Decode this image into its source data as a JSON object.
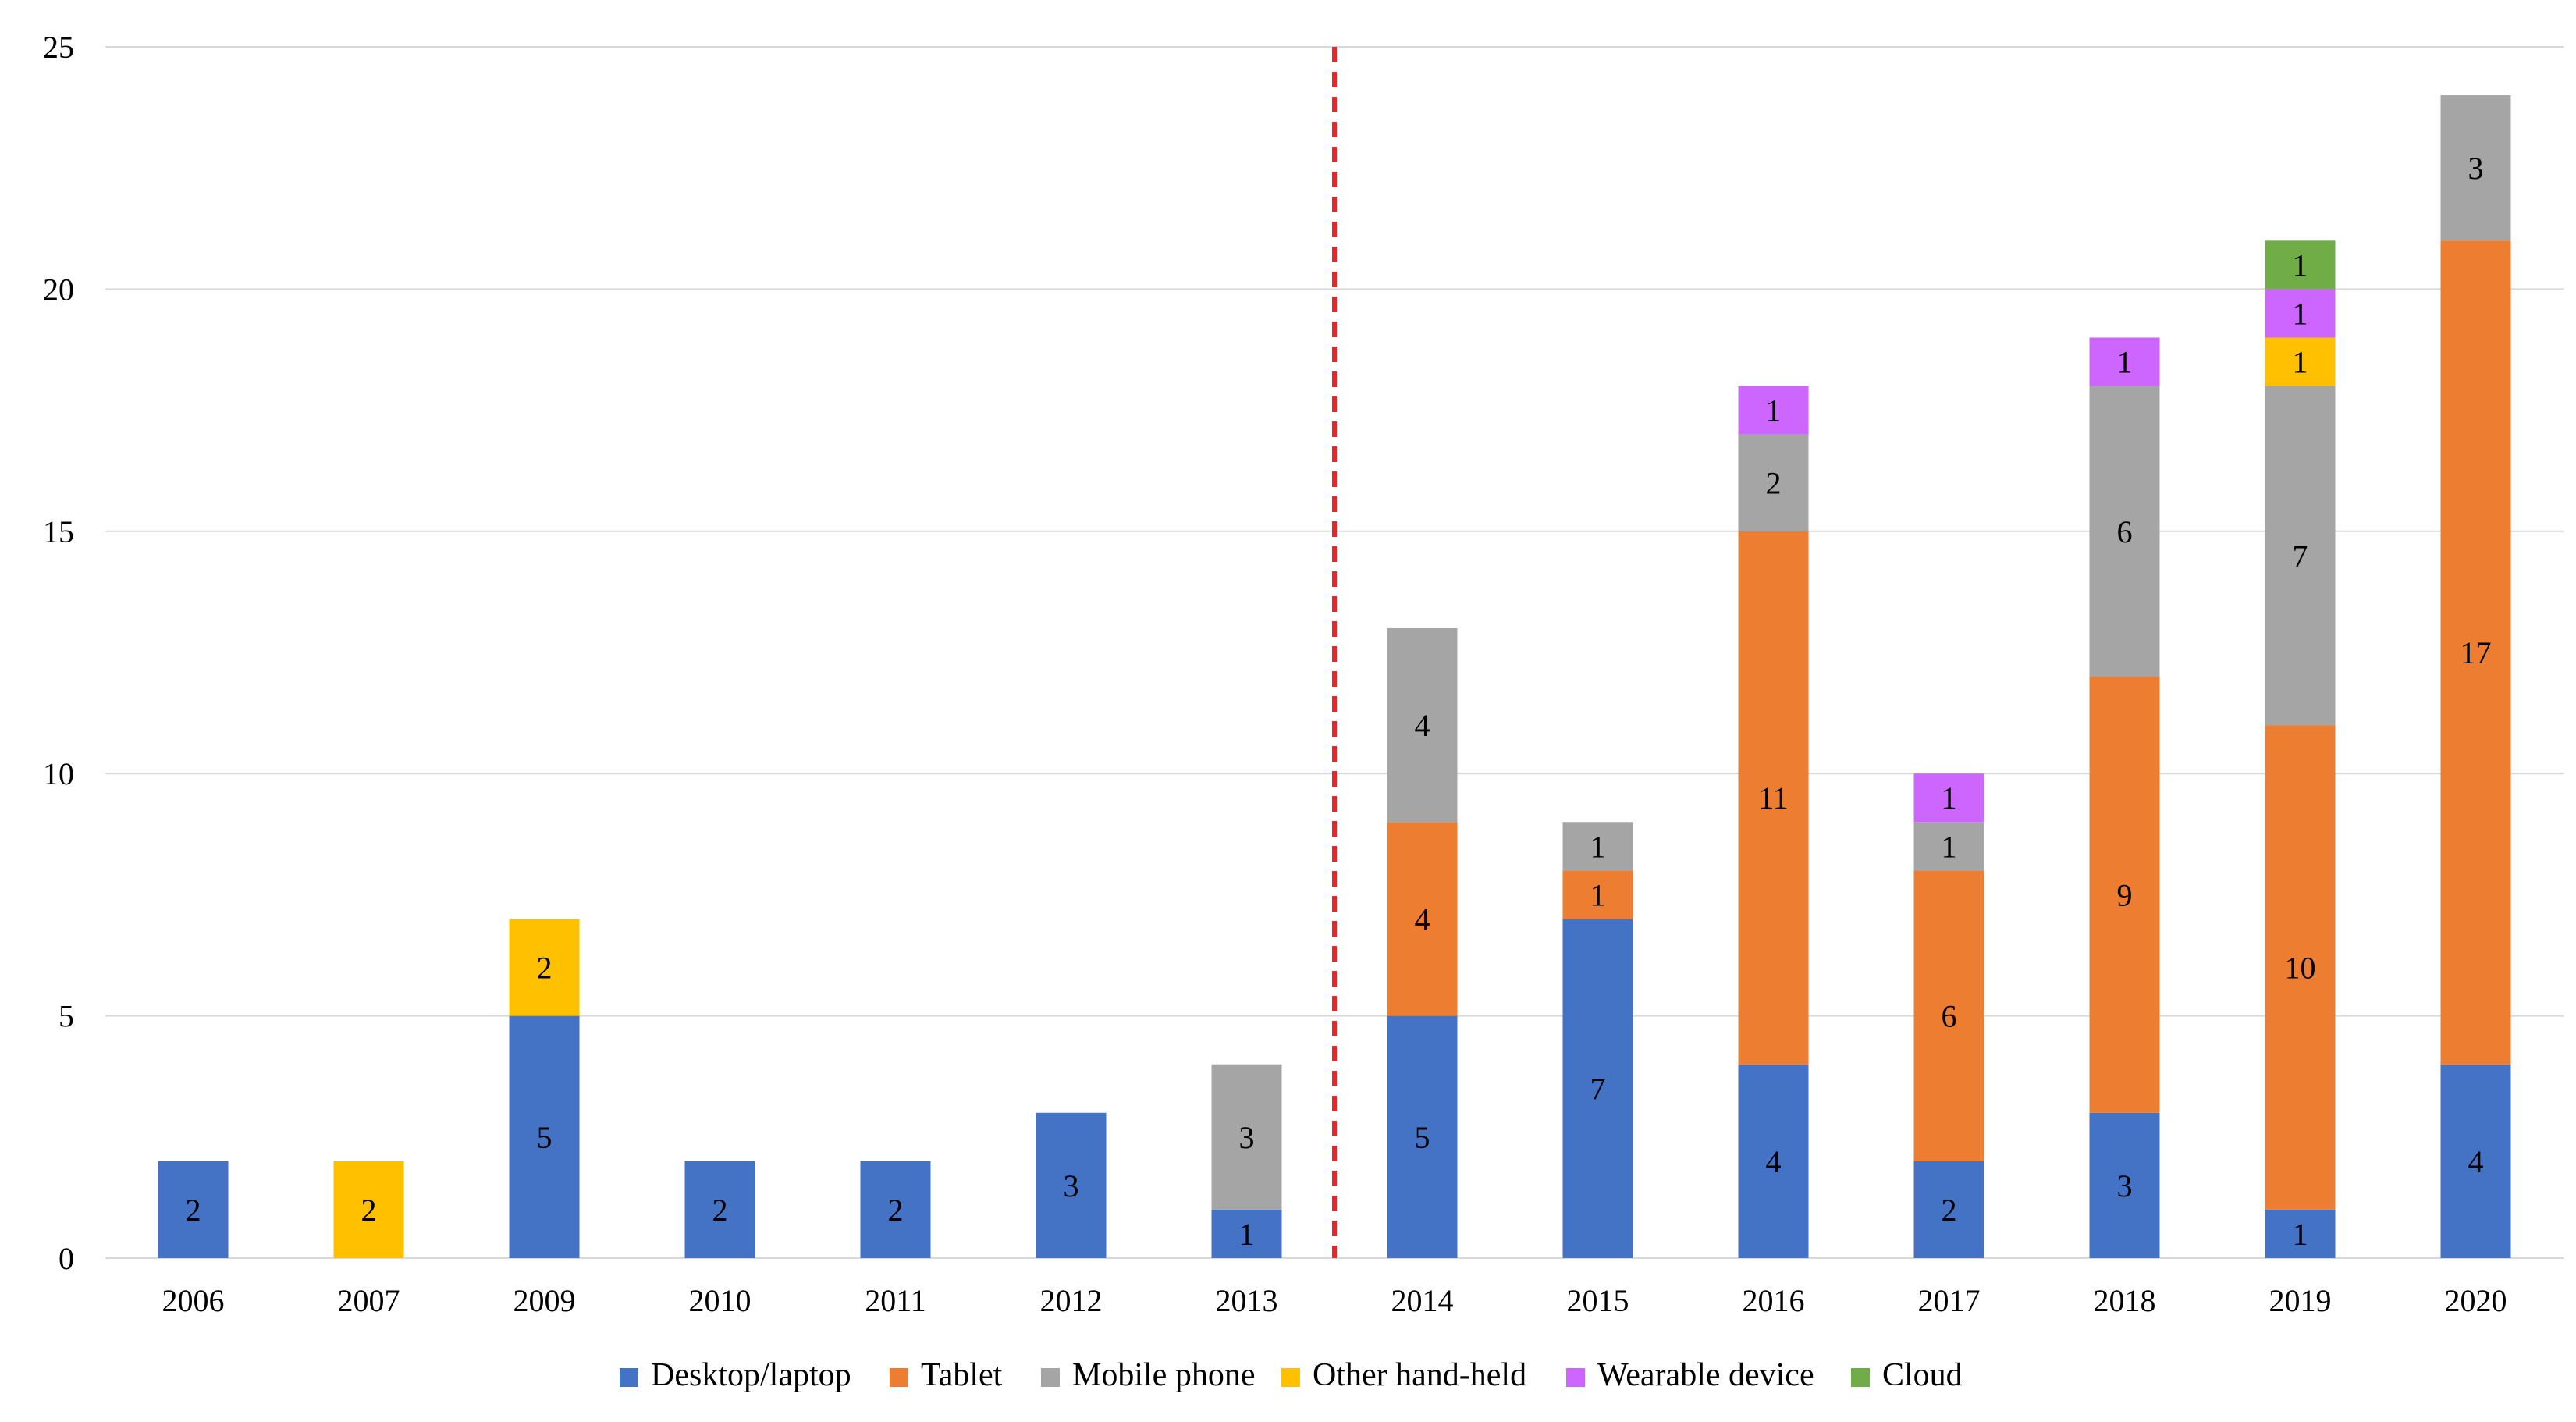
{
  "chart_data": {
    "type": "bar",
    "stacked": true,
    "title": "",
    "xlabel": "",
    "ylabel": "",
    "ylim": [
      0,
      25
    ],
    "yticks": [
      "0",
      "5",
      "10",
      "15",
      "20",
      "25"
    ],
    "grid": true,
    "categories": [
      "2006",
      "2007",
      "2009",
      "2010",
      "2011",
      "2012",
      "2013",
      "2014",
      "2015",
      "2016",
      "2017",
      "2018",
      "2019",
      "2020"
    ],
    "series": [
      {
        "name": "Desktop/laptop",
        "color": "#4472c4",
        "values": [
          2,
          0,
          5,
          2,
          2,
          3,
          1,
          5,
          7,
          4,
          2,
          3,
          1,
          4
        ]
      },
      {
        "name": "Tablet",
        "color": "#ed7d31",
        "values": [
          0,
          0,
          0,
          0,
          0,
          0,
          0,
          4,
          1,
          11,
          6,
          9,
          10,
          17
        ]
      },
      {
        "name": "Mobile phone",
        "color": "#a5a5a5",
        "values": [
          0,
          0,
          0,
          0,
          0,
          0,
          3,
          4,
          1,
          2,
          1,
          6,
          7,
          3
        ]
      },
      {
        "name": "Other hand-held",
        "color": "#ffc000",
        "values": [
          0,
          2,
          2,
          0,
          0,
          0,
          0,
          0,
          0,
          0,
          0,
          0,
          1,
          0
        ]
      },
      {
        "name": "Wearable device",
        "color": "#cc66ff",
        "values": [
          0,
          0,
          0,
          0,
          0,
          0,
          0,
          0,
          0,
          1,
          1,
          1,
          1,
          0
        ]
      },
      {
        "name": "Cloud",
        "color": "#70ad47",
        "values": [
          0,
          0,
          0,
          0,
          0,
          0,
          0,
          0,
          0,
          0,
          0,
          0,
          1,
          0
        ]
      }
    ],
    "divider": {
      "between": [
        "2013",
        "2014"
      ],
      "color": "#e8262a",
      "style": "dashed"
    },
    "legend_position": "bottom-center"
  }
}
